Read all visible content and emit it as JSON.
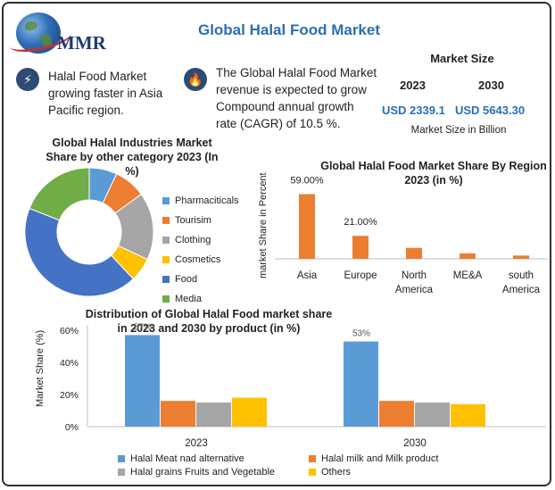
{
  "brand": {
    "logo_text": "MMR"
  },
  "title": "Global Halal Food Market",
  "notes": [
    {
      "icon": "lightning-icon",
      "text_lines": [
        "Halal Food Market",
        "growing faster in Asia",
        "Pacific region."
      ]
    },
    {
      "icon": "flame-icon",
      "text_lines": [
        "The Global Halal Food Market",
        "revenue is expected to grow",
        "Compound annual growth",
        "rate (CAGR) of 10.5 %."
      ]
    }
  ],
  "market_size": {
    "title": "Market Size",
    "years": [
      "2023",
      "2030"
    ],
    "values": [
      "USD 2339.1",
      "USD 5643.30"
    ],
    "unit": "Market Size in Billion"
  },
  "colors": {
    "blue": "#5b9bd5",
    "orange": "#ed7d31",
    "gray": "#a5a5a5",
    "yellow": "#ffc000",
    "navy": "#4472c4",
    "green": "#70ad47",
    "title_blue": "#2a6fb0"
  },
  "chart_data": [
    {
      "type": "pie",
      "title_lines": [
        "Global Halal Industries  Market",
        "Share by other category 2023 (In",
        "%)"
      ],
      "labels": [
        "Pharmaciticals",
        "Tourisim",
        "Clothing",
        "Cosmetics",
        "Food",
        "Media"
      ],
      "values": [
        7,
        8,
        17,
        6,
        43,
        19
      ],
      "colors": [
        "#5b9bd5",
        "#ed7d31",
        "#a5a5a5",
        "#ffc000",
        "#4472c4",
        "#70ad47"
      ],
      "legend": "right"
    },
    {
      "type": "bar",
      "title_lines": [
        "Global Halal Food Market Share By Region",
        "2023 (in %)"
      ],
      "ylabel": "market Share in Percent",
      "categories": [
        [
          "Asia"
        ],
        [
          "Europe"
        ],
        [
          "North",
          "America"
        ],
        [
          "ME&A"
        ],
        [
          "south",
          "America"
        ]
      ],
      "values": [
        59,
        21,
        10,
        5,
        3
      ],
      "data_labels": [
        "59.00%",
        "21.00%",
        "",
        "",
        ""
      ],
      "color": "#ed7d31",
      "ylim": [
        0,
        70
      ],
      "grid": false
    },
    {
      "type": "bar",
      "title_lines": [
        "Distribution of Global Halal Food market share",
        "in 2023 and 2030 by product (in %)"
      ],
      "ylabel": "Market Share (%)",
      "categories": [
        "2023",
        "2030"
      ],
      "series": [
        {
          "name": "Halal Meat nad alternative",
          "values": [
            57,
            53
          ],
          "color": "#5b9bd5",
          "data_labels": [
            "57%",
            "53%"
          ]
        },
        {
          "name": "Halal milk and Milk product",
          "values": [
            16,
            16
          ],
          "color": "#ed7d31"
        },
        {
          "name": "Halal grains Fruits and Vegetable",
          "values": [
            15,
            15
          ],
          "color": "#a5a5a5"
        },
        {
          "name": "Others",
          "values": [
            18,
            14
          ],
          "color": "#ffc000"
        }
      ],
      "yticks": [
        "0%",
        "20%",
        "40%",
        "60%"
      ],
      "ylim": [
        0,
        60
      ],
      "legend": "bottom",
      "grid": false
    }
  ]
}
